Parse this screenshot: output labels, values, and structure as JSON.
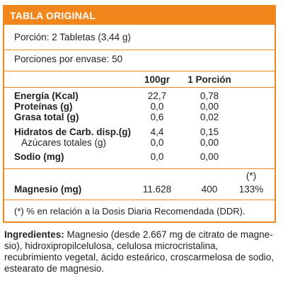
{
  "title": "TABLA ORIGINAL",
  "colors": {
    "accent": "#f0861c",
    "text": "#222222"
  },
  "porcion": {
    "label": "Porción:",
    "value": "2 Tabletas (3,44 g)"
  },
  "porciones": {
    "label": "Porciones por envase:",
    "value": "50"
  },
  "columns": {
    "c1": "100gr",
    "c2": "1 Porción"
  },
  "nutrients": [
    {
      "name": "Energía (Kcal)",
      "v100": "22,7",
      "vpor": "0,78"
    },
    {
      "name": "Proteínas (g)",
      "v100": "0,0",
      "vpor": "0,00"
    },
    {
      "name": "Grasa total (g)",
      "v100": "0,6",
      "vpor": "0,02"
    },
    {
      "name": "Hidratos de Carb. disp.(g)",
      "v100": "4,4",
      "vpor": "0,15"
    },
    {
      "name": "Azúcares totales (g)",
      "v100": "0,0",
      "vpor": "0,00"
    },
    {
      "name": "Sodio (mg)",
      "v100": "0,0",
      "vpor": "0,00"
    }
  ],
  "magnesio": {
    "name": "Magnesio (mg)",
    "v100": "11.628",
    "vpor": "400",
    "ddr_mark": "(*)",
    "ddr": "133%"
  },
  "footnote": "(*) % en relación a la Dosis Diaria Recomendada (DDR).",
  "ingredientes": {
    "label": "Ingredientes:",
    "text": " Magnesio (desde 2.667 mg de citrato de magne-sio), hidroxipropilcelulosa, celulosa microcristalina, recubrimiento vegetal, ácido esteárico, croscarmelosa de sodio, estearato de magnesio."
  }
}
